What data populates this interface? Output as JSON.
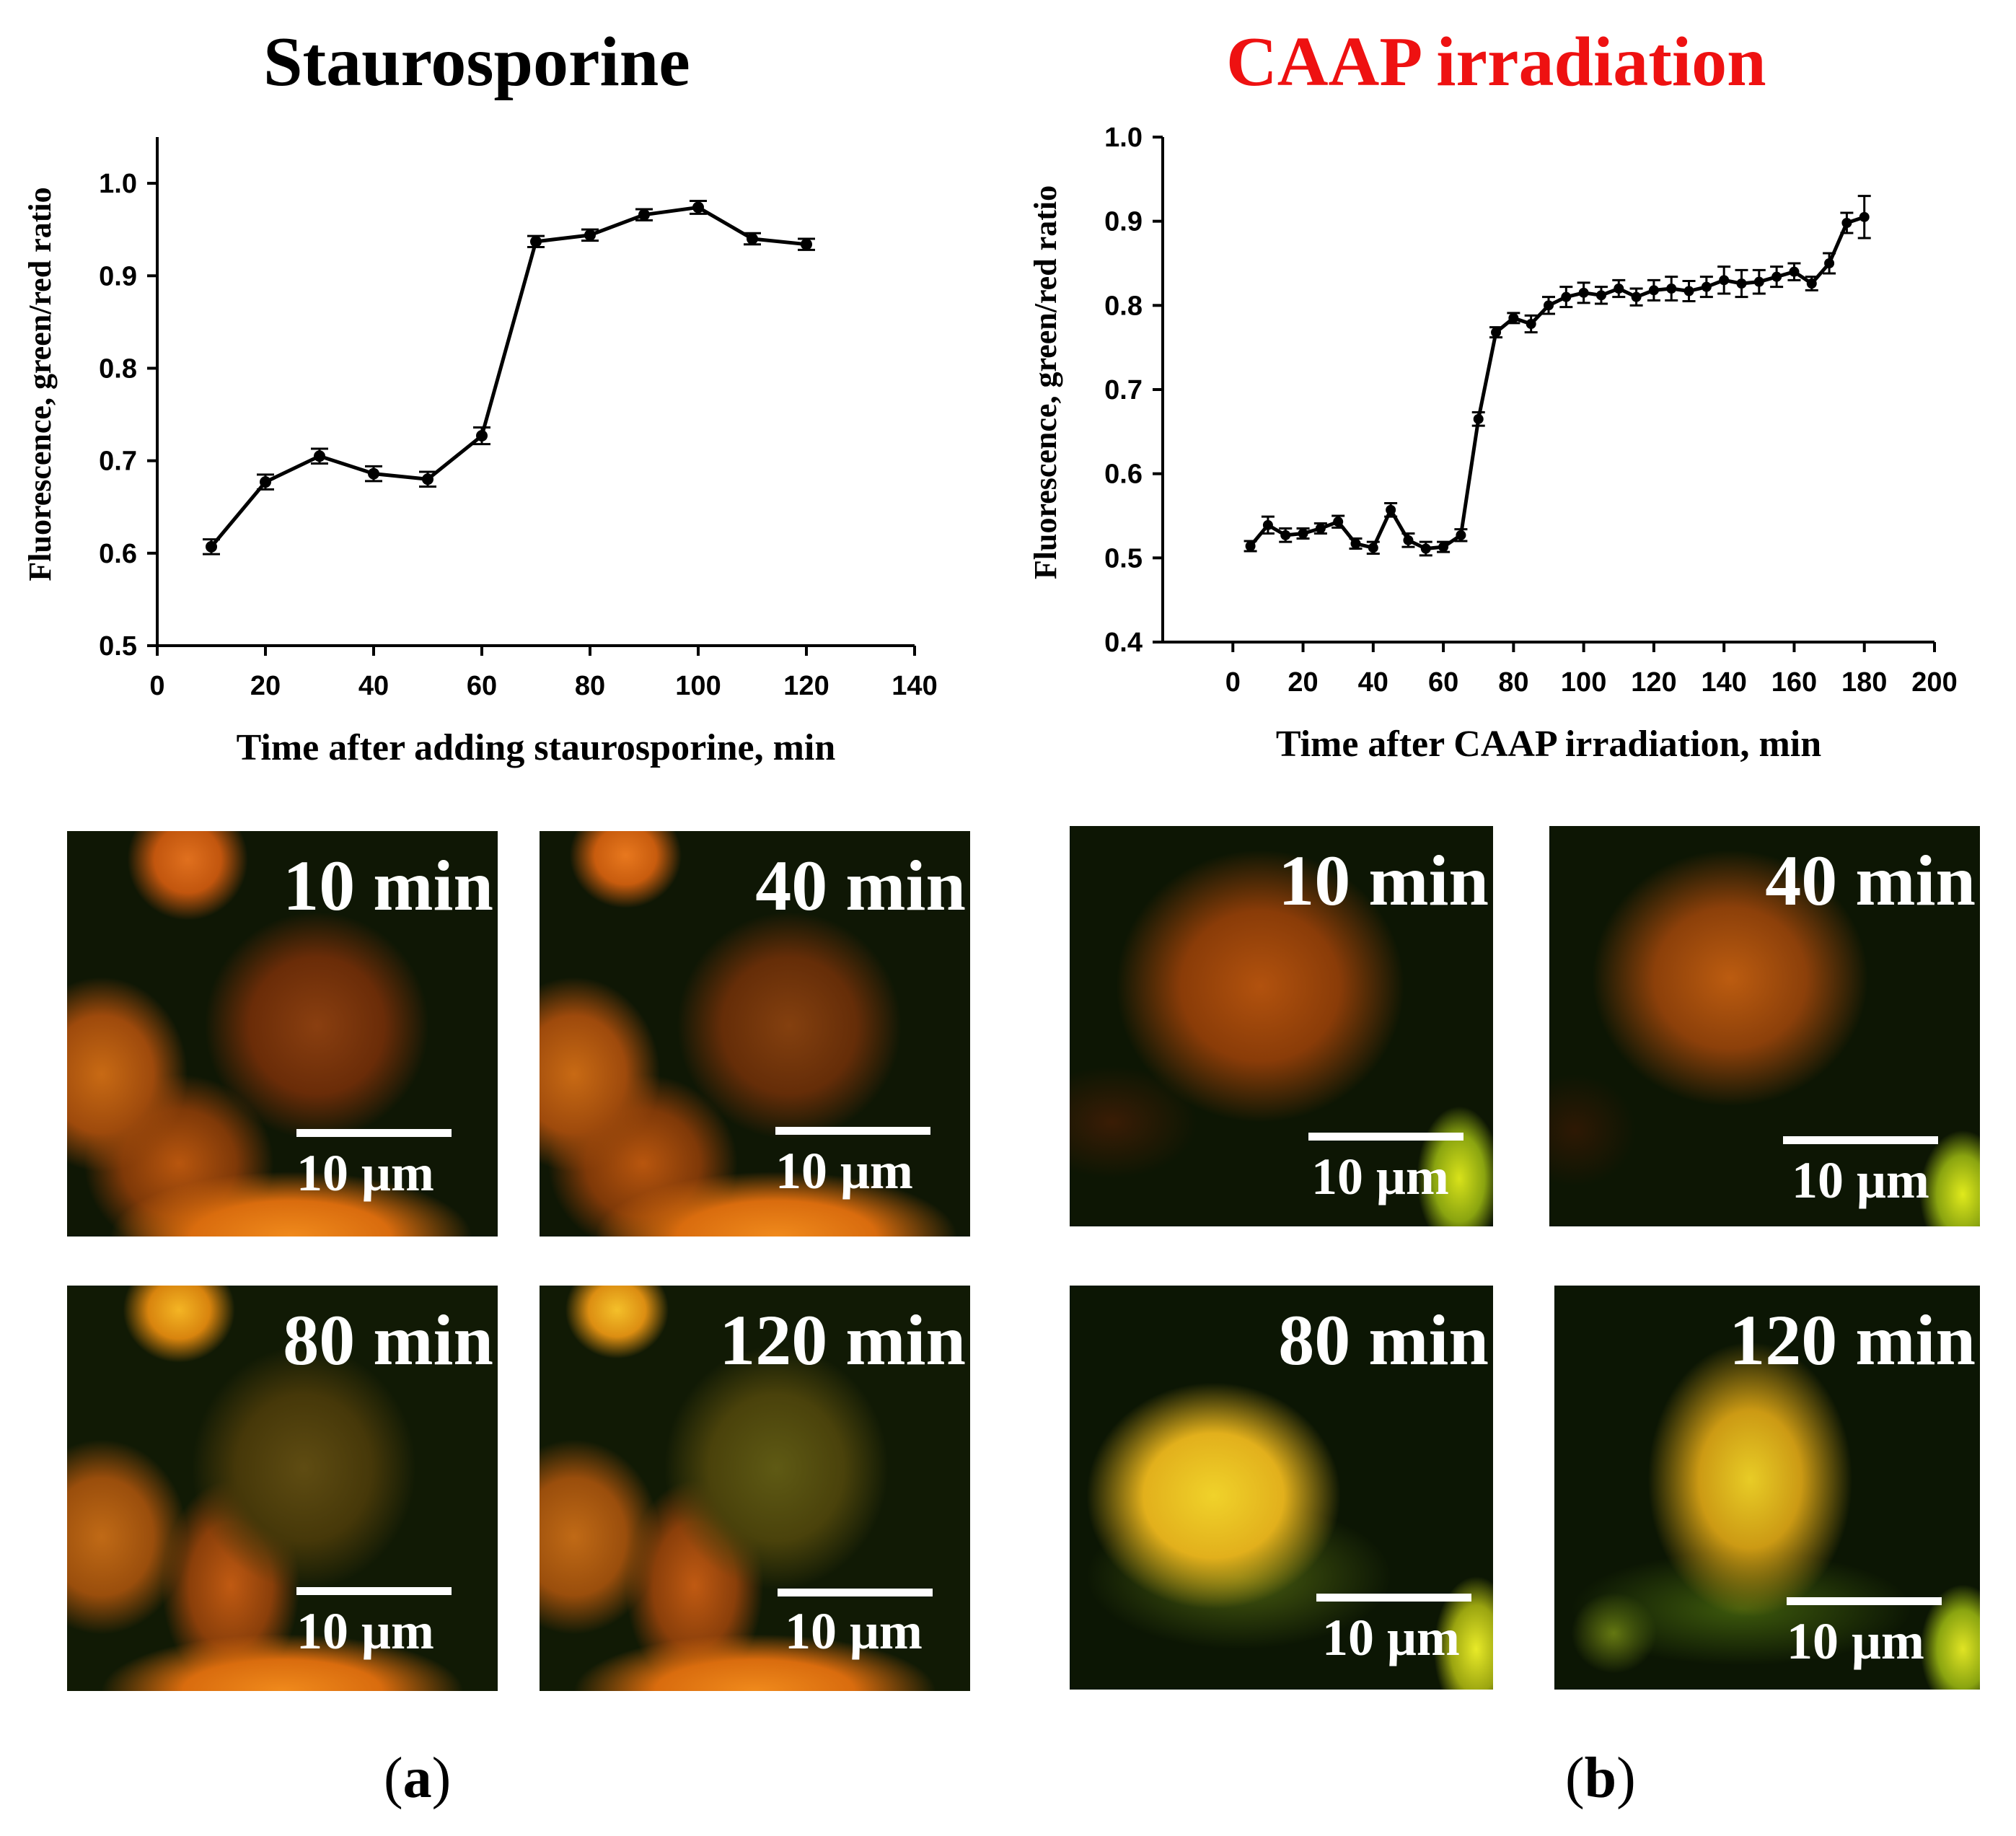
{
  "panels": [
    {
      "letter": "a",
      "title": "Staurosporine",
      "title_color": "#000000",
      "micrographs": [
        {
          "time": "10 min",
          "scale": "10 μm"
        },
        {
          "time": "40 min",
          "scale": "10 μm"
        },
        {
          "time": "80 min",
          "scale": "10 μm"
        },
        {
          "time": "120 min",
          "scale": "10 μm"
        }
      ]
    },
    {
      "letter": "b",
      "title": "CAAP irradiation",
      "title_color": "#ee1111",
      "micrographs": [
        {
          "time": "10 min",
          "scale": "10 μm"
        },
        {
          "time": "40 min",
          "scale": "10 μm"
        },
        {
          "time": "80 min",
          "scale": "10 μm"
        },
        {
          "time": "120 min",
          "scale": "10 μm"
        }
      ]
    }
  ],
  "chart_data": [
    {
      "type": "line",
      "title": "Staurosporine",
      "xlabel": "Time after adding staurosporine, min",
      "ylabel": "Fluorescence, green/red ratio",
      "xlim": [
        0,
        140
      ],
      "ylim": [
        0.5,
        1.05
      ],
      "xticks": [
        "0",
        "20",
        "40",
        "60",
        "80",
        "100",
        "120",
        "140"
      ],
      "yticks": [
        "0.5",
        "0.6",
        "0.7",
        "0.8",
        "0.9",
        "1.0"
      ],
      "series": [
        {
          "name": "green/red ratio",
          "x": [
            10,
            20,
            30,
            40,
            50,
            60,
            70,
            80,
            90,
            100,
            110,
            120
          ],
          "values": [
            0.607,
            0.677,
            0.705,
            0.686,
            0.68,
            0.727,
            0.937,
            0.944,
            0.966,
            0.974,
            0.94,
            0.934
          ],
          "error": [
            0.008,
            0.008,
            0.008,
            0.008,
            0.008,
            0.009,
            0.006,
            0.006,
            0.006,
            0.007,
            0.006,
            0.006
          ]
        }
      ]
    },
    {
      "type": "line",
      "title": "CAAP irradiation",
      "xlabel": "Time after CAAP irradiation, min",
      "ylabel": "Fluorescence, green/red ratio",
      "xlim": [
        -20,
        200
      ],
      "ylim": [
        0.4,
        1.0
      ],
      "xticks": [
        "0",
        "20",
        "40",
        "60",
        "80",
        "100",
        "120",
        "140",
        "160",
        "180",
        "200"
      ],
      "yticks": [
        "0.4",
        "0.5",
        "0.6",
        "0.7",
        "0.8",
        "0.9",
        "1.0"
      ],
      "series": [
        {
          "name": "green/red ratio",
          "x": [
            5,
            10,
            15,
            20,
            25,
            30,
            35,
            40,
            45,
            50,
            55,
            60,
            65,
            70,
            75,
            80,
            85,
            90,
            95,
            100,
            105,
            110,
            115,
            120,
            125,
            130,
            135,
            140,
            145,
            150,
            155,
            160,
            165,
            170,
            175,
            180
          ],
          "values": [
            0.514,
            0.539,
            0.527,
            0.529,
            0.535,
            0.543,
            0.517,
            0.512,
            0.557,
            0.521,
            0.511,
            0.513,
            0.527,
            0.665,
            0.768,
            0.785,
            0.778,
            0.8,
            0.81,
            0.815,
            0.812,
            0.82,
            0.81,
            0.818,
            0.82,
            0.817,
            0.822,
            0.83,
            0.826,
            0.828,
            0.834,
            0.84,
            0.826,
            0.85,
            0.898,
            0.905
          ],
          "error": [
            0.006,
            0.01,
            0.008,
            0.006,
            0.006,
            0.007,
            0.006,
            0.007,
            0.008,
            0.008,
            0.008,
            0.006,
            0.007,
            0.008,
            0.006,
            0.006,
            0.01,
            0.01,
            0.012,
            0.012,
            0.01,
            0.01,
            0.01,
            0.012,
            0.014,
            0.012,
            0.012,
            0.016,
            0.016,
            0.014,
            0.012,
            0.01,
            0.008,
            0.012,
            0.012,
            0.025
          ]
        }
      ]
    }
  ]
}
